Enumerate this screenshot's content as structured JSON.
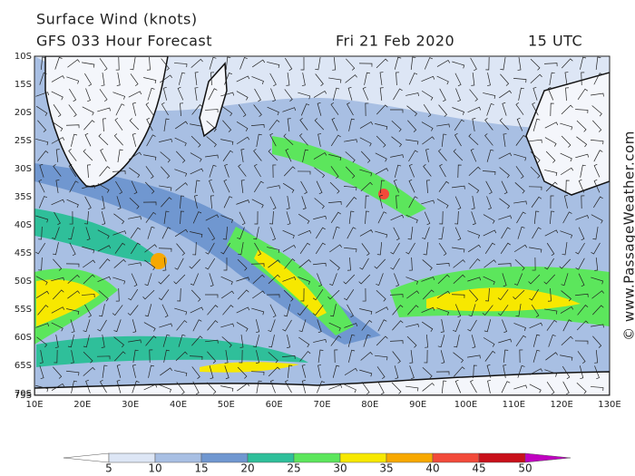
{
  "header": {
    "title": "Surface Wind (knots)",
    "forecast": "GFS 033 Hour Forecast",
    "date": "Fri 21 Feb 2020",
    "time": "15 UTC"
  },
  "watermark": "© www.PassageWeather.com",
  "latitudes": [
    "10S",
    "15S",
    "20S",
    "25S",
    "30S",
    "35S",
    "40S",
    "45S",
    "50S",
    "55S",
    "60S",
    "65S",
    "70S",
    "75S"
  ],
  "longitudes": [
    "10E",
    "20E",
    "30E",
    "40E",
    "50E",
    "60E",
    "70E",
    "80E",
    "90E",
    "100E",
    "110E",
    "120E",
    "130E"
  ],
  "colorbar": {
    "labels": [
      5,
      10,
      15,
      20,
      25,
      30,
      35,
      40,
      45,
      50
    ],
    "colors": [
      "#ffffff",
      "#dde6f5",
      "#a8bfe3",
      "#7097d0",
      "#2fbf9a",
      "#5ce65c",
      "#f7e800",
      "#f7a800",
      "#f24a3a",
      "#c8101a",
      "#c000c0"
    ]
  }
}
